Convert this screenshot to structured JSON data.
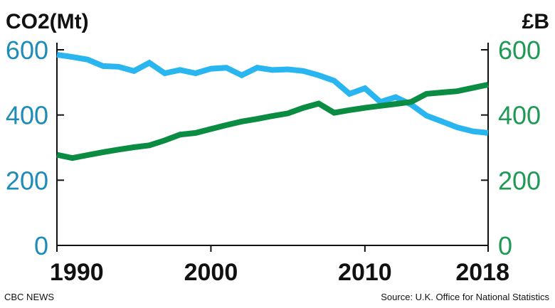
{
  "chart_data": {
    "type": "line",
    "left_axis_label": "CO2(Mt)",
    "right_axis_label": "£B",
    "x": [
      1990,
      1991,
      1992,
      1993,
      1994,
      1995,
      1996,
      1997,
      1998,
      1999,
      2000,
      2001,
      2002,
      2003,
      2004,
      2005,
      2006,
      2007,
      2008,
      2009,
      2010,
      2011,
      2012,
      2013,
      2014,
      2015,
      2016,
      2017,
      2018
    ],
    "x_ticks": [
      "1990",
      "2000",
      "2010",
      "2018"
    ],
    "x_tick_values": [
      1990,
      2000,
      2010,
      2018
    ],
    "y_ticks_left": [
      "0",
      "200",
      "400",
      "600"
    ],
    "y_ticks_right": [
      "0",
      "200",
      "400",
      "600"
    ],
    "y_tick_values": [
      0,
      200,
      400,
      600
    ],
    "ylim_left": [
      0,
      600
    ],
    "ylim_right": [
      0,
      600
    ],
    "series": [
      {
        "axis": "left",
        "color": "#29b6f0",
        "values": [
          585,
          578,
          570,
          550,
          548,
          535,
          560,
          528,
          538,
          528,
          542,
          545,
          522,
          545,
          538,
          540,
          535,
          522,
          505,
          465,
          482,
          440,
          455,
          432,
          398,
          380,
          362,
          350,
          345
        ]
      },
      {
        "axis": "right",
        "color": "#0a8c43",
        "values": [
          278,
          268,
          277,
          286,
          294,
          301,
          307,
          322,
          340,
          345,
          357,
          369,
          380,
          388,
          397,
          405,
          422,
          435,
          407,
          415,
          422,
          428,
          434,
          440,
          465,
          469,
          473,
          483,
          493
        ]
      }
    ],
    "left_tick_color": "#1e8cb8",
    "right_tick_color": "#1e9a55",
    "grid": false
  },
  "footer": {
    "source_left": "CBC NEWS",
    "source_right": "Source: U.K. Office for National Statistics"
  }
}
